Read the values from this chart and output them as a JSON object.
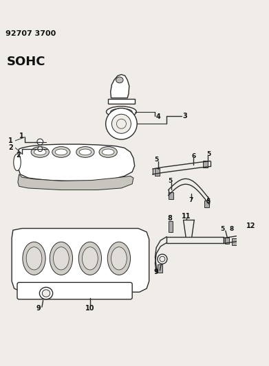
{
  "title": "92707 3700",
  "subtitle": "SOHC",
  "bg_color": "#f0ede8",
  "line_color": "#2a2a2a",
  "label_color": "#111111",
  "fig_width": 3.91,
  "fig_height": 5.33
}
